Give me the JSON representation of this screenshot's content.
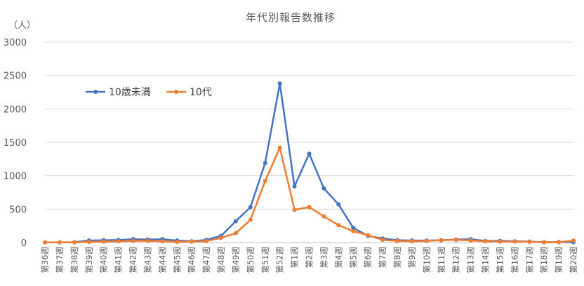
{
  "chart_data": {
    "type": "line",
    "title": "年代別報告数推移",
    "unit_label": "（人）",
    "ylim": [
      0,
      3000
    ],
    "yticks": [
      "0",
      "500",
      "1000",
      "1500",
      "2000",
      "2500",
      "3000"
    ],
    "grid": true,
    "legend_position": "top-left",
    "categories": [
      "第36週",
      "第37週",
      "第38週",
      "第39週",
      "第40週",
      "第41週",
      "第42週",
      "第43週",
      "第44週",
      "第45週",
      "第46週",
      "第47週",
      "第48週",
      "第49週",
      "第50週",
      "第51週",
      "第52週",
      "第1週",
      "第2週",
      "第3週",
      "第4週",
      "第5週",
      "第6週",
      "第7週",
      "第8週",
      "第9週",
      "第10週",
      "第11週",
      "第12週",
      "第13週",
      "第14週",
      "第15週",
      "第16週",
      "第17週",
      "第18週",
      "第19週",
      "第20週"
    ],
    "series": [
      {
        "name": "10歳未満",
        "color": "#4472C4",
        "values": [
          3,
          2,
          5,
          30,
          35,
          38,
          50,
          45,
          50,
          30,
          20,
          40,
          100,
          320,
          530,
          1190,
          2380,
          840,
          1330,
          810,
          570,
          220,
          100,
          60,
          35,
          30,
          30,
          35,
          45,
          50,
          25,
          25,
          20,
          15,
          5,
          8,
          5
        ]
      },
      {
        "name": "10代",
        "color": "#ED7D31",
        "values": [
          2,
          2,
          3,
          10,
          15,
          20,
          25,
          25,
          20,
          10,
          15,
          20,
          70,
          140,
          340,
          920,
          1420,
          490,
          530,
          390,
          260,
          170,
          110,
          40,
          25,
          20,
          25,
          35,
          40,
          30,
          20,
          15,
          15,
          10,
          5,
          5,
          30
        ]
      }
    ]
  }
}
